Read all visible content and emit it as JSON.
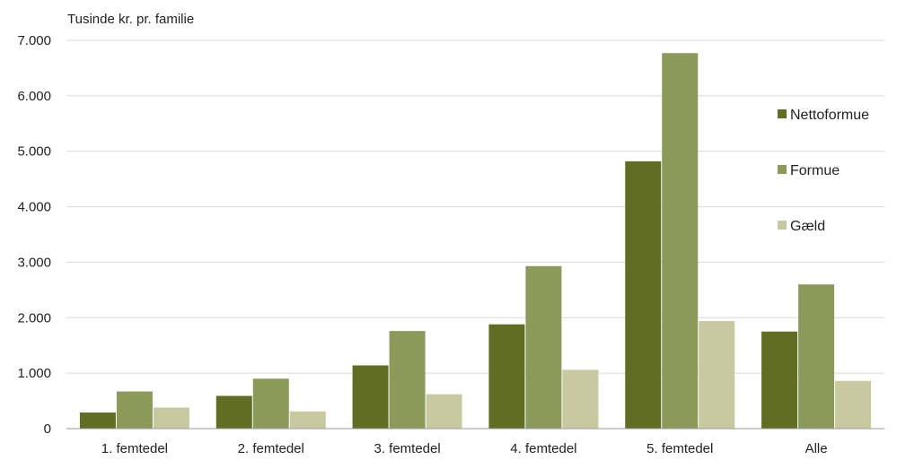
{
  "chart_data": {
    "type": "bar",
    "title": "",
    "ylabel": "Tusinde kr. pr. familie",
    "xlabel": "",
    "categories": [
      "1. femtedel",
      "2. femtedel",
      "3. femtedel",
      "4. femtedel",
      "5. femtedel",
      "Alle"
    ],
    "series": [
      {
        "name": "Nettoformue",
        "color": "#606d23",
        "values": [
          290,
          590,
          1140,
          1880,
          4820,
          1750
        ]
      },
      {
        "name": "Formue",
        "color": "#8c9a59",
        "values": [
          670,
          900,
          1760,
          2930,
          6770,
          2600
        ]
      },
      {
        "name": "Gæld",
        "color": "#c9c9a1",
        "values": [
          380,
          310,
          620,
          1060,
          1940,
          860
        ]
      }
    ],
    "ylim": [
      0,
      7000
    ],
    "yticks": [
      0,
      1000,
      2000,
      3000,
      4000,
      5000,
      6000,
      7000
    ],
    "ytick_labels": [
      "0",
      "1.000",
      "2.000",
      "3.000",
      "4.000",
      "5.000",
      "6.000",
      "7.000"
    ],
    "grid": true,
    "legend_position": "right"
  }
}
